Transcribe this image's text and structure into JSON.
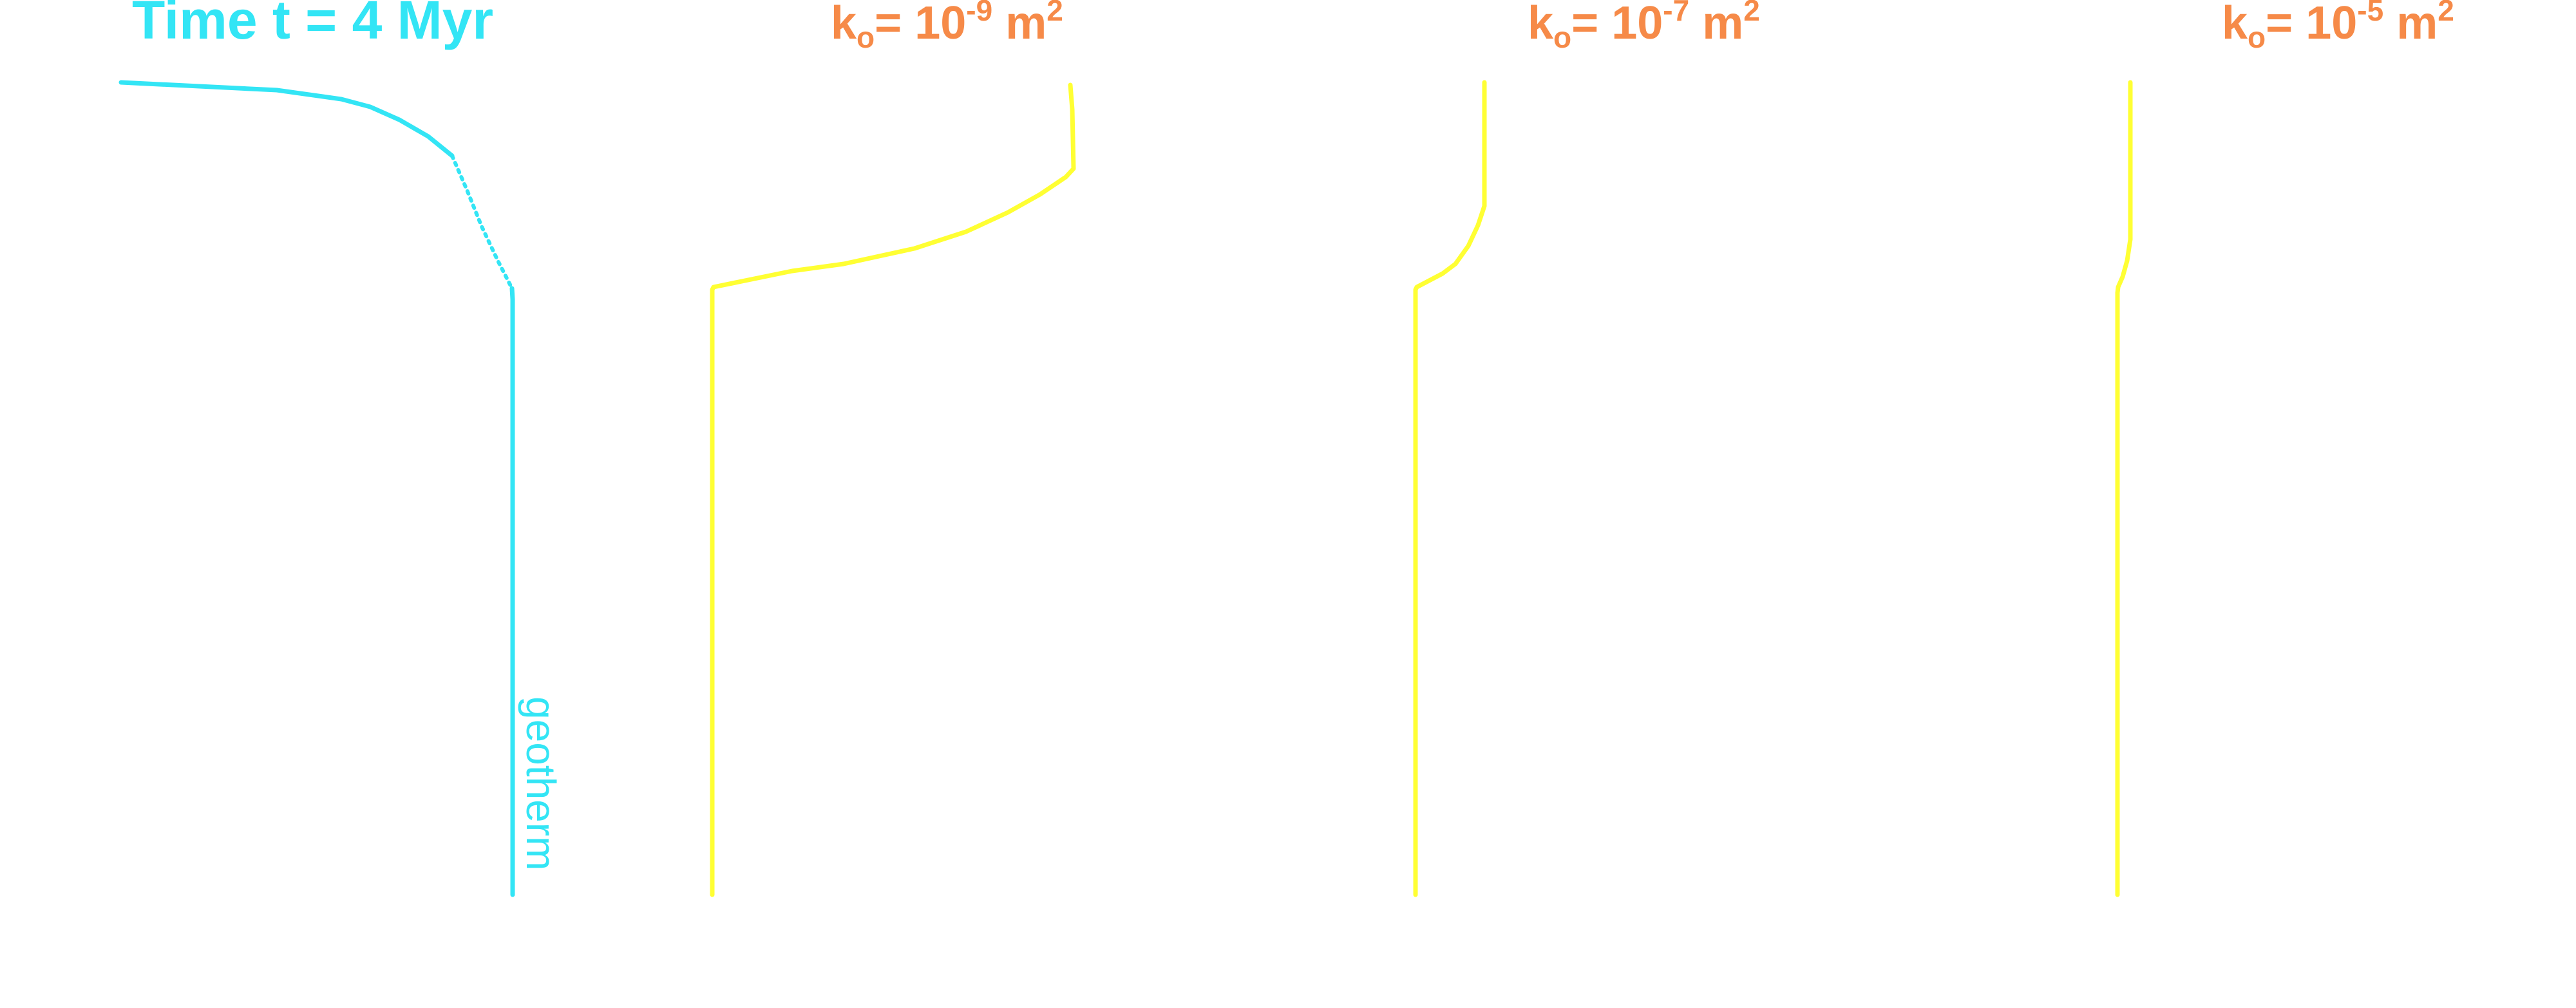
{
  "time_label": "Time t = 4 Myr",
  "geotherm_label": "geotherm",
  "colors": {
    "geotherm": "#33e5f5",
    "profile": "#ffff33",
    "panel_title": "#f68a48"
  },
  "panels": [
    {
      "k_symbol": "k",
      "k_subscript": "o",
      "equals": "= 10",
      "exponent": "-9",
      "unit": " m",
      "unit_exponent": "2"
    },
    {
      "k_symbol": "k",
      "k_subscript": "o",
      "equals": "= 10",
      "exponent": "-7",
      "unit": " m",
      "unit_exponent": "2"
    },
    {
      "k_symbol": "k",
      "k_subscript": "o",
      "equals": "= 10",
      "exponent": "-5",
      "unit": " m",
      "unit_exponent": "2"
    }
  ]
}
